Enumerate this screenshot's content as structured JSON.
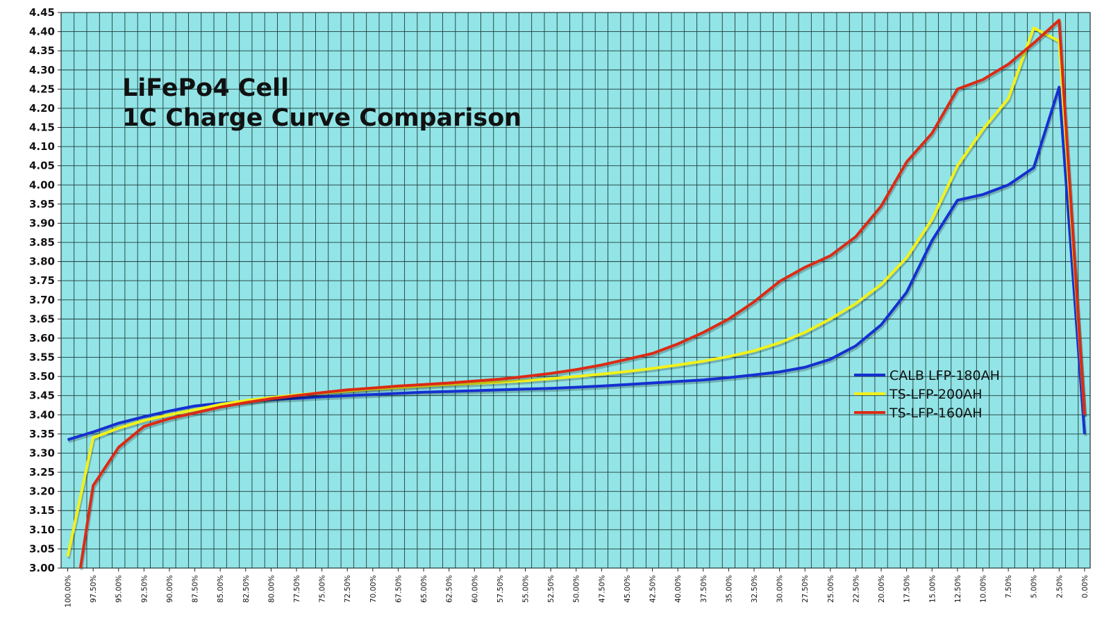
{
  "chart_data": {
    "type": "line",
    "title_lines": [
      "LiFePo4 Cell",
      "1C Charge Curve Comparison"
    ],
    "xlabel": "",
    "ylabel": "",
    "ylim": [
      3.0,
      4.45
    ],
    "y_ticks": [
      "3.00",
      "3.05",
      "3.10",
      "3.15",
      "3.20",
      "3.25",
      "3.30",
      "3.35",
      "3.40",
      "3.45",
      "3.50",
      "3.55",
      "3.60",
      "3.65",
      "3.70",
      "3.75",
      "3.80",
      "3.85",
      "3.90",
      "3.95",
      "4.00",
      "4.05",
      "4.10",
      "4.15",
      "4.20",
      "4.25",
      "4.30",
      "4.35",
      "4.40",
      "4.45"
    ],
    "categories": [
      "100.00%",
      "97.50%",
      "95.00%",
      "92.50%",
      "90.00%",
      "87.50%",
      "85.00%",
      "82.50%",
      "80.00%",
      "77.50%",
      "75.00%",
      "72.50%",
      "70.00%",
      "67.50%",
      "65.00%",
      "62.50%",
      "60.00%",
      "57.50%",
      "55.00%",
      "52.50%",
      "50.00%",
      "47.50%",
      "45.00%",
      "42.50%",
      "40.00%",
      "37.50%",
      "35.00%",
      "32.50%",
      "30.00%",
      "27.50%",
      "25.00%",
      "22.50%",
      "20.00%",
      "17.50%",
      "15.00%",
      "12.50%",
      "10.00%",
      "7.50%",
      "5.00%",
      "2.50%",
      "0.00%"
    ],
    "grid": true,
    "legend_position": "right",
    "background": "#92e4e6",
    "series": [
      {
        "name": "CALB LFP-180AH",
        "color": "#1530d0",
        "points": [
          [
            0,
            3.335
          ],
          [
            1,
            3.355
          ],
          [
            2,
            3.378
          ],
          [
            3,
            3.395
          ],
          [
            4,
            3.41
          ],
          [
            5,
            3.423
          ],
          [
            6,
            3.43
          ],
          [
            7,
            3.435
          ],
          [
            8,
            3.44
          ],
          [
            9,
            3.443
          ],
          [
            10,
            3.447
          ],
          [
            11,
            3.45
          ],
          [
            12,
            3.453
          ],
          [
            13,
            3.456
          ],
          [
            14,
            3.459
          ],
          [
            15,
            3.461
          ],
          [
            16,
            3.463
          ],
          [
            17,
            3.465
          ],
          [
            18,
            3.467
          ],
          [
            19,
            3.469
          ],
          [
            20,
            3.472
          ],
          [
            21,
            3.475
          ],
          [
            22,
            3.479
          ],
          [
            23,
            3.483
          ],
          [
            24,
            3.487
          ],
          [
            25,
            3.491
          ],
          [
            26,
            3.497
          ],
          [
            27,
            3.504
          ],
          [
            28,
            3.512
          ],
          [
            29,
            3.524
          ],
          [
            30,
            3.545
          ],
          [
            31,
            3.58
          ],
          [
            32,
            3.635
          ],
          [
            33,
            3.72
          ],
          [
            34,
            3.855
          ],
          [
            35,
            3.96
          ],
          [
            36,
            3.975
          ],
          [
            37,
            4.0
          ],
          [
            38,
            4.045
          ],
          [
            39,
            4.255
          ],
          [
            40,
            3.35
          ]
        ]
      },
      {
        "name": "TS-LFP-200AH",
        "color": "#f2f21a",
        "points": [
          [
            0,
            3.03
          ],
          [
            1,
            3.34
          ],
          [
            2,
            3.365
          ],
          [
            3,
            3.385
          ],
          [
            4,
            3.4
          ],
          [
            5,
            3.413
          ],
          [
            6,
            3.427
          ],
          [
            7,
            3.437
          ],
          [
            8,
            3.445
          ],
          [
            9,
            3.452
          ],
          [
            10,
            3.457
          ],
          [
            11,
            3.462
          ],
          [
            12,
            3.467
          ],
          [
            13,
            3.471
          ],
          [
            14,
            3.475
          ],
          [
            15,
            3.479
          ],
          [
            16,
            3.482
          ],
          [
            17,
            3.485
          ],
          [
            18,
            3.489
          ],
          [
            19,
            3.494
          ],
          [
            20,
            3.5
          ],
          [
            21,
            3.506
          ],
          [
            22,
            3.513
          ],
          [
            23,
            3.521
          ],
          [
            24,
            3.53
          ],
          [
            25,
            3.54
          ],
          [
            26,
            3.552
          ],
          [
            27,
            3.567
          ],
          [
            28,
            3.588
          ],
          [
            29,
            3.615
          ],
          [
            30,
            3.65
          ],
          [
            31,
            3.69
          ],
          [
            32,
            3.74
          ],
          [
            33,
            3.81
          ],
          [
            34,
            3.91
          ],
          [
            35,
            4.05
          ],
          [
            36,
            4.145
          ],
          [
            37,
            4.225
          ],
          [
            38,
            4.41
          ],
          [
            39,
            4.375
          ],
          [
            40,
            3.4
          ]
        ]
      },
      {
        "name": "TS-LFP-160AH",
        "color": "#dc2a14",
        "points": [
          [
            0.5,
            3.0
          ],
          [
            1,
            3.215
          ],
          [
            2,
            3.315
          ],
          [
            3,
            3.37
          ],
          [
            4,
            3.39
          ],
          [
            5,
            3.405
          ],
          [
            6,
            3.42
          ],
          [
            7,
            3.432
          ],
          [
            8,
            3.442
          ],
          [
            9,
            3.45
          ],
          [
            10,
            3.458
          ],
          [
            11,
            3.465
          ],
          [
            12,
            3.47
          ],
          [
            13,
            3.475
          ],
          [
            14,
            3.479
          ],
          [
            15,
            3.483
          ],
          [
            16,
            3.488
          ],
          [
            17,
            3.493
          ],
          [
            18,
            3.5
          ],
          [
            19,
            3.508
          ],
          [
            20,
            3.518
          ],
          [
            21,
            3.53
          ],
          [
            22,
            3.545
          ],
          [
            23,
            3.56
          ],
          [
            24,
            3.585
          ],
          [
            25,
            3.615
          ],
          [
            26,
            3.65
          ],
          [
            27,
            3.695
          ],
          [
            28,
            3.748
          ],
          [
            29,
            3.785
          ],
          [
            30,
            3.815
          ],
          [
            31,
            3.865
          ],
          [
            32,
            3.945
          ],
          [
            33,
            4.06
          ],
          [
            34,
            4.135
          ],
          [
            35,
            4.25
          ],
          [
            36,
            4.275
          ],
          [
            37,
            4.315
          ],
          [
            38,
            4.37
          ],
          [
            39,
            4.43
          ],
          [
            40,
            3.4
          ]
        ]
      }
    ]
  }
}
